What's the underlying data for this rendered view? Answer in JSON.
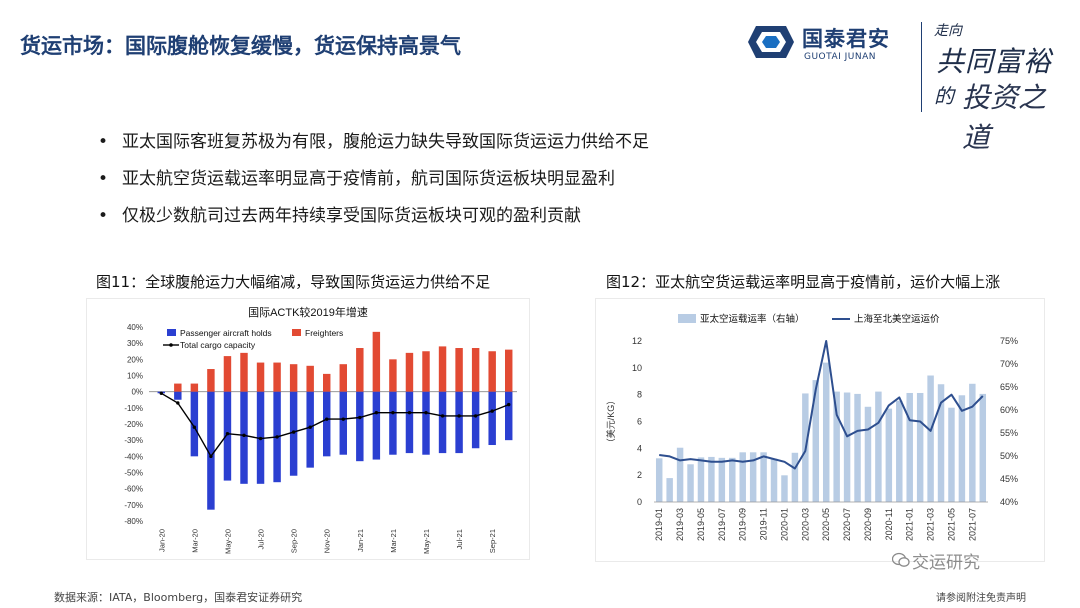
{
  "slide": {
    "title": "货运市场：国际腹舱恢复缓慢，货运保持高景气",
    "bullets": [
      "亚太国际客班复苏极为有限，腹舱运力缺失导致国际货运运力供给不足",
      "亚太航空货运载运率明显高于疫情前，航司国际货运板块明显盈利",
      "仅极少数航司过去两年持续享受国际货运板块可观的盈利贡献"
    ],
    "bullet_symbol": "•",
    "fig11_caption": "图11：全球腹舱运力大幅缩减，导致国际货运运力供给不足",
    "fig12_caption": "图12：亚太航空货运载运率明显高于疫情前，运价大幅上涨",
    "source": "数据来源：IATA，Bloomberg，国泰君安证券研究",
    "disclaimer": "请参阅附注免责声明",
    "watermark": "交运研究"
  },
  "logo": {
    "cn": "国泰君安",
    "en": "GUOTAI JUNAN",
    "slogan_line1": "走向",
    "slogan_line2": "共同富裕",
    "slogan_line3": "的",
    "slogan_line4": "投资之道"
  },
  "colors": {
    "title": "#1f3f73",
    "passenger": "#2b3fd1",
    "freighter": "#e24a33",
    "total": "#000000",
    "load_factor": "#b8cce4",
    "price": "#2e4f8f"
  },
  "chart_data": [
    {
      "type": "bar",
      "title": "国际ACTK较2019年增速",
      "x_tick_labels": [
        "Jan-20",
        "Mar-20",
        "May-20",
        "Jul-20",
        "Sep-20",
        "Nov-20",
        "Jan-21",
        "Mar-21",
        "May-21",
        "Jul-21",
        "Sep-21"
      ],
      "categories": [
        "Jan-20",
        "Feb-20",
        "Mar-20",
        "Apr-20",
        "May-20",
        "Jun-20",
        "Jul-20",
        "Aug-20",
        "Sep-20",
        "Oct-20",
        "Nov-20",
        "Dec-20",
        "Jan-21",
        "Feb-21",
        "Mar-21",
        "Apr-21",
        "May-21",
        "Jun-21",
        "Jul-21",
        "Aug-21",
        "Sep-21",
        "Oct-21"
      ],
      "series": [
        {
          "name": "Passenger aircraft holds",
          "kind": "bar",
          "values": [
            -1,
            -5,
            -40,
            -73,
            -55,
            -57,
            -57,
            -56,
            -52,
            -47,
            -40,
            -39,
            -43,
            -42,
            -39,
            -38,
            -39,
            -38,
            -38,
            -35,
            -33,
            -30
          ]
        },
        {
          "name": "Freighters",
          "kind": "bar",
          "values": [
            0,
            5,
            5,
            14,
            22,
            24,
            18,
            18,
            17,
            16,
            11,
            17,
            27,
            37,
            20,
            24,
            25,
            28,
            27,
            27,
            25,
            26
          ]
        },
        {
          "name": "Total cargo capacity",
          "kind": "line",
          "values": [
            -1,
            -7,
            -22,
            -40,
            -26,
            -27,
            -29,
            -28,
            -25,
            -22,
            -17,
            -17,
            -16,
            -13,
            -13,
            -13,
            -13,
            -15,
            -15,
            -15,
            -12,
            -8
          ]
        }
      ],
      "y_ticks": [
        "40%",
        "30%",
        "20%",
        "10%",
        "0%",
        "-10%",
        "-20%",
        "-30%",
        "-40%",
        "-50%",
        "-60%",
        "-70%",
        "-80%"
      ],
      "ylim": [
        -80,
        40
      ],
      "legend_position": "top"
    },
    {
      "type": "bar",
      "title": "",
      "ylabel_left": "（美元/KG）",
      "ylim_left": [
        0,
        12
      ],
      "y_ticks_left": [
        "0",
        "2",
        "4",
        "6",
        "8",
        "10",
        "12"
      ],
      "ylim_right": [
        40,
        75
      ],
      "y_ticks_right": [
        "40%",
        "45%",
        "50%",
        "55%",
        "60%",
        "65%",
        "70%",
        "75%"
      ],
      "x_tick_labels": [
        "2019-01",
        "2019-03",
        "2019-05",
        "2019-07",
        "2019-09",
        "2019-11",
        "2020-01",
        "2020-03",
        "2020-05",
        "2020-07",
        "2020-09",
        "2020-11",
        "2021-01",
        "2021-03",
        "2021-05",
        "2021-07"
      ],
      "categories": [
        "2019-01",
        "2019-02",
        "2019-03",
        "2019-04",
        "2019-05",
        "2019-06",
        "2019-07",
        "2019-08",
        "2019-09",
        "2019-10",
        "2019-11",
        "2019-12",
        "2020-01",
        "2020-02",
        "2020-03",
        "2020-04",
        "2020-05",
        "2020-06",
        "2020-07",
        "2020-08",
        "2020-09",
        "2020-10",
        "2020-11",
        "2020-12",
        "2021-01",
        "2021-02",
        "2021-03",
        "2021-04",
        "2021-05",
        "2021-06",
        "2021-07",
        "2021-08"
      ],
      "series": [
        {
          "name": "亚太空运载运率（右轴）",
          "kind": "bar",
          "axis": "right",
          "values": [
            49.5,
            45.2,
            51.8,
            48.2,
            49.7,
            49.8,
            49.6,
            49.6,
            50.8,
            50.8,
            50.8,
            49.4,
            45.8,
            50.7,
            63.6,
            66.5,
            70.3,
            64.0,
            63.8,
            63.5,
            60.7,
            64.0,
            60.3,
            62.0,
            63.7,
            63.7,
            67.5,
            65.6,
            60.5,
            63.2,
            65.7,
            63.5
          ]
        },
        {
          "name": "上海至北美空运运价",
          "kind": "line",
          "axis": "left",
          "values": [
            3.5,
            3.4,
            3.1,
            3.2,
            3.1,
            3.0,
            3.0,
            3.1,
            3.0,
            3.1,
            3.4,
            3.2,
            3.0,
            2.5,
            3.8,
            8.4,
            12.0,
            6.5,
            4.9,
            5.3,
            5.4,
            5.9,
            7.2,
            7.8,
            6.1,
            6.0,
            5.3,
            7.4,
            8.0,
            6.8,
            7.1,
            7.9
          ]
        }
      ],
      "legend_position": "top"
    }
  ]
}
